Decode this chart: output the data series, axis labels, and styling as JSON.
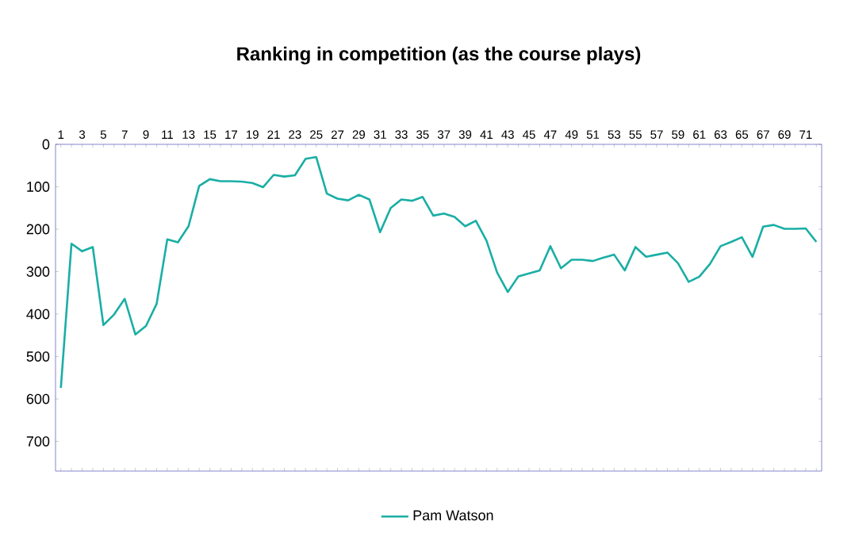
{
  "chart_data": {
    "type": "line",
    "title": "Ranking in competition (as the course plays)",
    "categories": [
      "1",
      null,
      "3",
      null,
      "5",
      null,
      "7",
      null,
      "9",
      null,
      "11",
      null,
      "13",
      null,
      "15",
      null,
      "17",
      null,
      "19",
      null,
      "21",
      null,
      "23",
      null,
      "25",
      null,
      "27",
      null,
      "29",
      null,
      "31",
      null,
      "33",
      null,
      "35",
      null,
      "37",
      null,
      "39",
      null,
      "41",
      null,
      "43",
      null,
      "45",
      null,
      "47",
      null,
      "49",
      null,
      "51",
      null,
      "53",
      null,
      "55",
      null,
      "57",
      null,
      "59",
      null,
      "61",
      null,
      "63",
      null,
      "65",
      null,
      "67",
      null,
      "69",
      null,
      "71",
      null
    ],
    "series": [
      {
        "name": "Pam Watson",
        "color": "#1aaea5",
        "values": [
          574,
          234,
          252,
          242,
          426,
          401,
          364,
          448,
          428,
          376,
          224,
          231,
          193,
          98,
          82,
          87,
          87,
          88,
          91,
          101,
          72,
          76,
          73,
          34,
          30,
          116,
          128,
          132,
          119,
          130,
          207,
          150,
          130,
          133,
          124,
          168,
          163,
          171,
          193,
          180,
          227,
          302,
          348,
          311,
          304,
          297,
          240,
          292,
          272,
          272,
          275,
          267,
          260,
          297,
          242,
          265,
          260,
          255,
          280,
          324,
          312,
          282,
          240,
          230,
          219,
          265,
          194,
          190,
          199,
          199,
          198,
          230
        ]
      }
    ],
    "ylim": [
      770,
      0
    ],
    "yticks": [
      0,
      100,
      200,
      300,
      400,
      500,
      600,
      700
    ],
    "legend": "bottom",
    "grid": false,
    "marker": "none",
    "line_style": "solid"
  }
}
